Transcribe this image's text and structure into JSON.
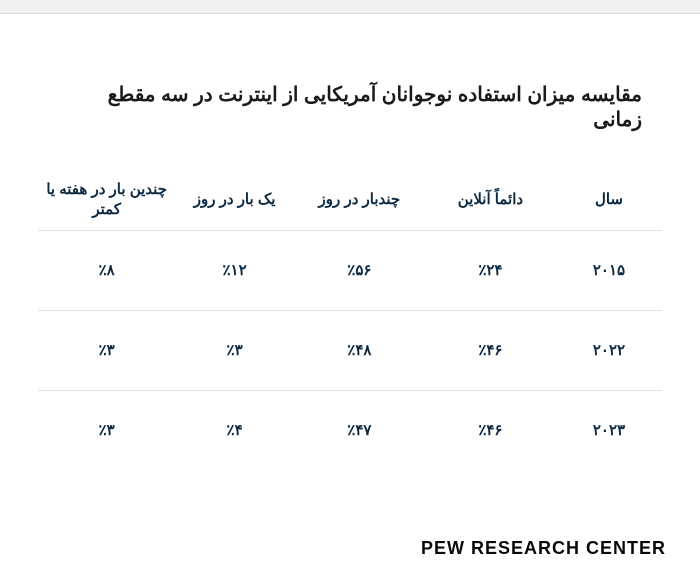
{
  "title": "مقایسه میزان استفاده نوجوانان آمریکایی از اینترنت در سه مقطع زمانی",
  "source": "PEW RESEARCH CENTER",
  "table": {
    "type": "table",
    "background_color": "#ffffff",
    "row_border_color": "#e5e5e5",
    "header_color": "#0d2a44",
    "cell_color": "#0d2a44",
    "accent_color": "#f2901d",
    "header_fontsize": 15,
    "cell_fontsize": 15,
    "title_fontsize": 20,
    "col_widths_pct": [
      17,
      21,
      21,
      19,
      22
    ],
    "columns": [
      {
        "key": "year",
        "label": "سال",
        "accent": true
      },
      {
        "key": "always_online",
        "label": "دائماً آنلاین"
      },
      {
        "key": "several_day",
        "label": "چندبار در روز"
      },
      {
        "key": "once_day",
        "label": "یک بار در روز"
      },
      {
        "key": "few_week",
        "label": "چندین بار در هفته یا کمتر"
      }
    ],
    "rows": [
      {
        "year": "۲۰۱۵",
        "always_online": "٪۲۴",
        "several_day": "٪۵۶",
        "once_day": "٪۱۲",
        "few_week": "٪۸"
      },
      {
        "year": "۲۰۲۲",
        "always_online": "٪۴۶",
        "several_day": "٪۴۸",
        "once_day": "٪۳",
        "few_week": "٪۳"
      },
      {
        "year": "۲۰۲۳",
        "always_online": "٪۴۶",
        "several_day": "٪۴۷",
        "once_day": "٪۴",
        "few_week": "٪۳"
      }
    ]
  }
}
